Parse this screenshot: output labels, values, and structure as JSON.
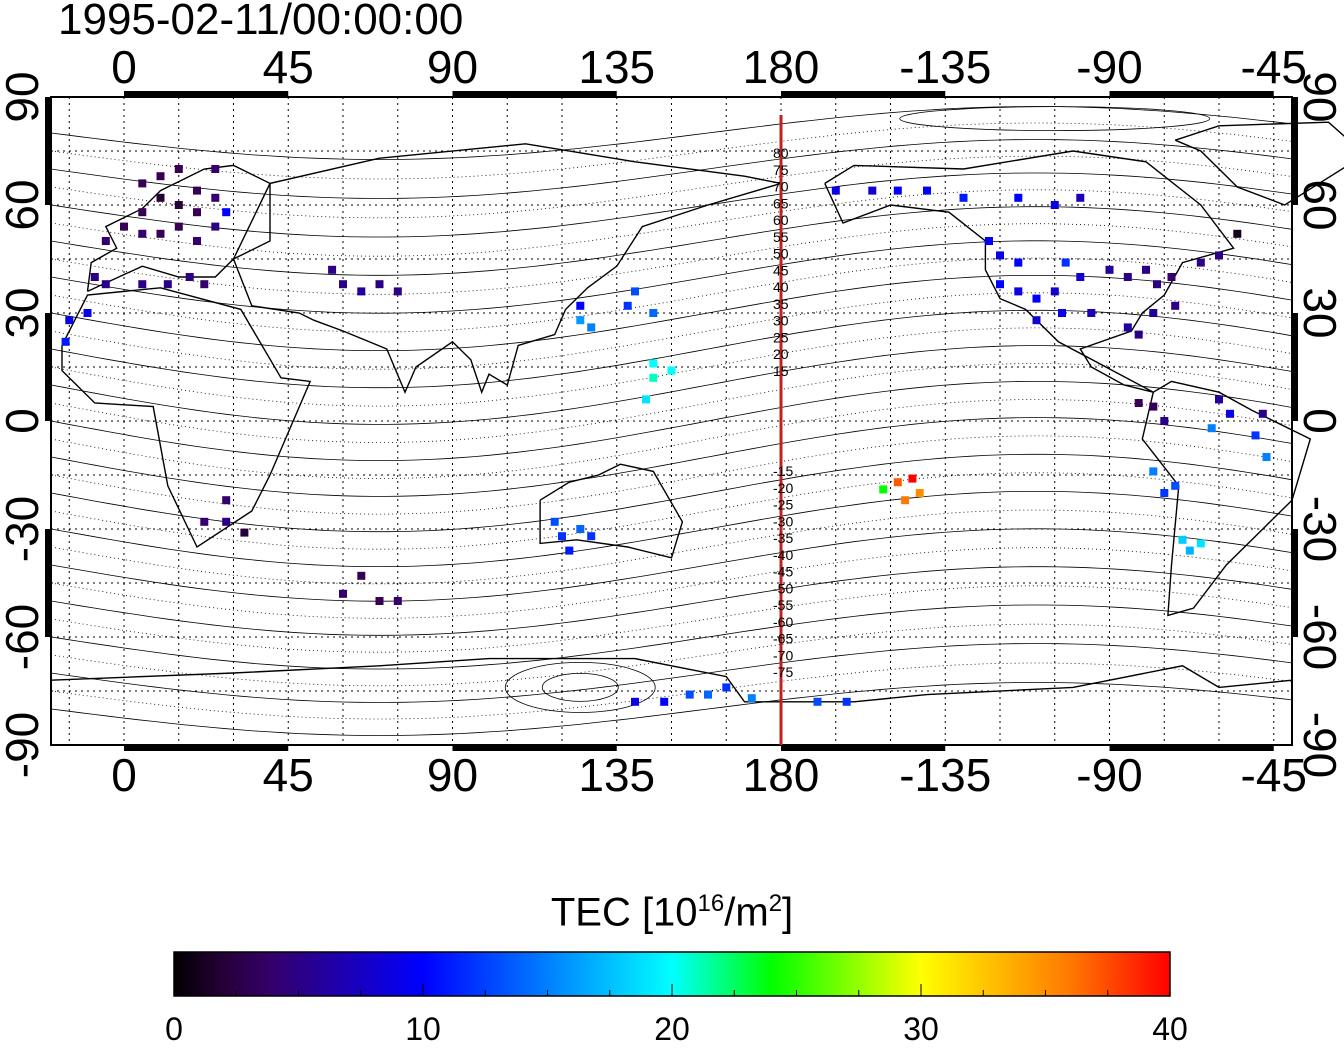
{
  "title": "1995-02-11/00:00:00",
  "axes": {
    "top_ticks": [
      "0",
      "45",
      "90",
      "135",
      "180",
      "-135",
      "-90",
      "-45"
    ],
    "bottom_ticks": [
      "0",
      "45",
      "90",
      "135",
      "180",
      "-135",
      "-90",
      "-45"
    ],
    "left_ticks": [
      "90",
      "60",
      "30",
      "0",
      "-30",
      "-60",
      "-90"
    ],
    "right_ticks": [
      "90",
      "60",
      "30",
      "0",
      "-30",
      "-60",
      "-90"
    ],
    "lon_range": [
      -20,
      320
    ],
    "lat_range": [
      -90,
      90
    ]
  },
  "dateline_labels": [
    "80",
    "75",
    "70",
    "65",
    "60",
    "55",
    "50",
    "45",
    "40",
    "35",
    "30",
    "25",
    "20",
    "15",
    "-15",
    "-20",
    "-25",
    "-30",
    "-35",
    "-40",
    "-45",
    "-50",
    "-55",
    "-60",
    "-65",
    "-70",
    "-75"
  ],
  "colorbar": {
    "title": "TEC  [10",
    "title_sup": "16",
    "title_mid": "/m",
    "title_sup2": "2",
    "title_end": "]",
    "ticks": [
      "0",
      "10",
      "20",
      "30",
      "40"
    ],
    "range": [
      0,
      40
    ]
  },
  "chart_data": {
    "type": "scatter",
    "title": "1995-02-11/00:00:00",
    "xlabel": "",
    "ylabel": "",
    "xlim": [
      -20,
      320
    ],
    "ylim": [
      -90,
      90
    ],
    "color_scale": "TEC [10^16/m^2]",
    "color_range": [
      0,
      40
    ],
    "grid": true,
    "points": [
      {
        "lon": 5,
        "lat": 66,
        "tec": 3
      },
      {
        "lon": 10,
        "lat": 68,
        "tec": 3
      },
      {
        "lon": 15,
        "lat": 70,
        "tec": 3
      },
      {
        "lon": 10,
        "lat": 62,
        "tec": 2
      },
      {
        "lon": 5,
        "lat": 58,
        "tec": 3
      },
      {
        "lon": 15,
        "lat": 60,
        "tec": 2
      },
      {
        "lon": 20,
        "lat": 58,
        "tec": 3
      },
      {
        "lon": 20,
        "lat": 64,
        "tec": 3
      },
      {
        "lon": 25,
        "lat": 62,
        "tec": 4
      },
      {
        "lon": 25,
        "lat": 70,
        "tec": 4
      },
      {
        "lon": 0,
        "lat": 54,
        "tec": 3
      },
      {
        "lon": 5,
        "lat": 52,
        "tec": 4
      },
      {
        "lon": 10,
        "lat": 52,
        "tec": 3
      },
      {
        "lon": 15,
        "lat": 54,
        "tec": 3
      },
      {
        "lon": -5,
        "lat": 50,
        "tec": 4
      },
      {
        "lon": 20,
        "lat": 50,
        "tec": 4
      },
      {
        "lon": 25,
        "lat": 54,
        "tec": 5
      },
      {
        "lon": 28,
        "lat": 58,
        "tec": 10
      },
      {
        "lon": -8,
        "lat": 40,
        "tec": 5
      },
      {
        "lon": -5,
        "lat": 38,
        "tec": 5
      },
      {
        "lon": 5,
        "lat": 38,
        "tec": 5
      },
      {
        "lon": 12,
        "lat": 38,
        "tec": 5
      },
      {
        "lon": 18,
        "lat": 40,
        "tec": 5
      },
      {
        "lon": 22,
        "lat": 38,
        "tec": 4
      },
      {
        "lon": -15,
        "lat": 28,
        "tec": 9
      },
      {
        "lon": -10,
        "lat": 30,
        "tec": 9
      },
      {
        "lon": -16,
        "lat": 22,
        "tec": 11
      },
      {
        "lon": 60,
        "lat": 38,
        "tec": 5
      },
      {
        "lon": 65,
        "lat": 36,
        "tec": 6
      },
      {
        "lon": 70,
        "lat": 38,
        "tec": 5
      },
      {
        "lon": 75,
        "lat": 36,
        "tec": 5
      },
      {
        "lon": 57,
        "lat": 42,
        "tec": 5
      },
      {
        "lon": 125,
        "lat": 32,
        "tec": 10
      },
      {
        "lon": 125,
        "lat": 28,
        "tec": 16
      },
      {
        "lon": 128,
        "lat": 26,
        "tec": 15
      },
      {
        "lon": 140,
        "lat": 36,
        "tec": 13
      },
      {
        "lon": 138,
        "lat": 32,
        "tec": 12
      },
      {
        "lon": 145,
        "lat": 30,
        "tec": 14
      },
      {
        "lon": 145,
        "lat": 16,
        "tec": 20
      },
      {
        "lon": 145,
        "lat": 12,
        "tec": 21
      },
      {
        "lon": 150,
        "lat": 14,
        "tec": 20
      },
      {
        "lon": 143,
        "lat": 6,
        "tec": 19
      },
      {
        "lon": 118,
        "lat": -28,
        "tec": 13
      },
      {
        "lon": 120,
        "lat": -32,
        "tec": 12
      },
      {
        "lon": 125,
        "lat": -30,
        "tec": 14
      },
      {
        "lon": 122,
        "lat": -36,
        "tec": 11
      },
      {
        "lon": 128,
        "lat": -32,
        "tec": 12
      },
      {
        "lon": 28,
        "lat": -22,
        "tec": 4
      },
      {
        "lon": 22,
        "lat": -28,
        "tec": 4
      },
      {
        "lon": 28,
        "lat": -28,
        "tec": 5
      },
      {
        "lon": 33,
        "lat": -31,
        "tec": 2
      },
      {
        "lon": 65,
        "lat": -43,
        "tec": 3
      },
      {
        "lon": 60,
        "lat": -48,
        "tec": 4
      },
      {
        "lon": 70,
        "lat": -50,
        "tec": 3
      },
      {
        "lon": 75,
        "lat": -50,
        "tec": 4
      },
      {
        "lon": 140,
        "lat": -78,
        "tec": 9
      },
      {
        "lon": 148,
        "lat": -78,
        "tec": 10
      },
      {
        "lon": 155,
        "lat": -76,
        "tec": 13
      },
      {
        "lon": 160,
        "lat": -76,
        "tec": 14
      },
      {
        "lon": 165,
        "lat": -74,
        "tec": 12
      },
      {
        "lon": 172,
        "lat": -77,
        "tec": 15
      },
      {
        "lon": 190,
        "lat": -78,
        "tec": 13
      },
      {
        "lon": 198,
        "lat": -78,
        "tec": 12
      },
      {
        "lon": 208,
        "lat": -19,
        "tec": 24
      },
      {
        "lon": 212,
        "lat": -17,
        "tec": 37
      },
      {
        "lon": 216,
        "lat": -16,
        "tec": 40
      },
      {
        "lon": 214,
        "lat": -22,
        "tec": 36
      },
      {
        "lon": 218,
        "lat": -20,
        "tec": 35
      },
      {
        "lon": 195,
        "lat": 64,
        "tec": 9
      },
      {
        "lon": 205,
        "lat": 64,
        "tec": 8
      },
      {
        "lon": 212,
        "lat": 64,
        "tec": 10
      },
      {
        "lon": 220,
        "lat": 64,
        "tec": 10
      },
      {
        "lon": 230,
        "lat": 62,
        "tec": 11
      },
      {
        "lon": 245,
        "lat": 62,
        "tec": 10
      },
      {
        "lon": 255,
        "lat": 60,
        "tec": 9
      },
      {
        "lon": 262,
        "lat": 62,
        "tec": 7
      },
      {
        "lon": 237,
        "lat": 50,
        "tec": 10
      },
      {
        "lon": 240,
        "lat": 46,
        "tec": 9
      },
      {
        "lon": 245,
        "lat": 44,
        "tec": 10
      },
      {
        "lon": 240,
        "lat": 38,
        "tec": 10
      },
      {
        "lon": 245,
        "lat": 36,
        "tec": 9
      },
      {
        "lon": 250,
        "lat": 34,
        "tec": 10
      },
      {
        "lon": 255,
        "lat": 36,
        "tec": 8
      },
      {
        "lon": 257,
        "lat": 30,
        "tec": 9
      },
      {
        "lon": 250,
        "lat": 28,
        "tec": 8
      },
      {
        "lon": 262,
        "lat": 40,
        "tec": 8
      },
      {
        "lon": 258,
        "lat": 44,
        "tec": 12
      },
      {
        "lon": 265,
        "lat": 30,
        "tec": 7
      },
      {
        "lon": 270,
        "lat": 42,
        "tec": 6
      },
      {
        "lon": 275,
        "lat": 40,
        "tec": 5
      },
      {
        "lon": 280,
        "lat": 42,
        "tec": 5
      },
      {
        "lon": 283,
        "lat": 38,
        "tec": 5
      },
      {
        "lon": 287,
        "lat": 40,
        "tec": 4
      },
      {
        "lon": 282,
        "lat": 30,
        "tec": 6
      },
      {
        "lon": 288,
        "lat": 32,
        "tec": 5
      },
      {
        "lon": 295,
        "lat": 44,
        "tec": 5
      },
      {
        "lon": 300,
        "lat": 46,
        "tec": 5
      },
      {
        "lon": 305,
        "lat": 52,
        "tec": 1
      },
      {
        "lon": 275,
        "lat": 26,
        "tec": 6
      },
      {
        "lon": 278,
        "lat": 24,
        "tec": 5
      },
      {
        "lon": 278,
        "lat": 5,
        "tec": 3
      },
      {
        "lon": 282,
        "lat": 4,
        "tec": 3
      },
      {
        "lon": 285,
        "lat": 0,
        "tec": 5
      },
      {
        "lon": 300,
        "lat": 6,
        "tec": 6
      },
      {
        "lon": 303,
        "lat": 2,
        "tec": 9
      },
      {
        "lon": 312,
        "lat": 2,
        "tec": 5
      },
      {
        "lon": 298,
        "lat": -2,
        "tec": 15
      },
      {
        "lon": 310,
        "lat": -4,
        "tec": 12
      },
      {
        "lon": 313,
        "lat": -10,
        "tec": 15
      },
      {
        "lon": 282,
        "lat": -14,
        "tec": 15
      },
      {
        "lon": 285,
        "lat": -20,
        "tec": 12
      },
      {
        "lon": 288,
        "lat": -18,
        "tec": 13
      },
      {
        "lon": 290,
        "lat": -33,
        "tec": 18
      },
      {
        "lon": 292,
        "lat": -36,
        "tec": 17
      },
      {
        "lon": 295,
        "lat": -34,
        "tec": 19
      }
    ]
  }
}
